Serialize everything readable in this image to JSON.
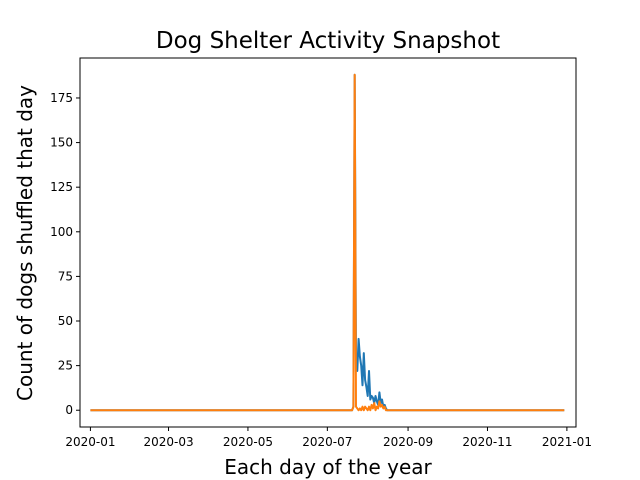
{
  "chart_data": {
    "type": "line",
    "title": "Dog Shelter Activity Snapshot",
    "xlabel": "Each day of the year",
    "ylabel": "Count of dogs shuffled that day",
    "xlim": [
      "2019-12-24",
      "2021-01-08"
    ],
    "ylim": [
      -9.4,
      197.4
    ],
    "x_ticks": [
      "2020-01",
      "2020-03",
      "2020-05",
      "2020-07",
      "2020-09",
      "2020-11",
      "2021-01"
    ],
    "y_ticks": [
      0,
      25,
      50,
      75,
      100,
      125,
      150,
      175
    ],
    "grid": false,
    "series": [
      {
        "color": "#1f77b4",
        "points": [
          [
            "2020-01-01",
            0
          ],
          [
            "2020-07-20",
            0
          ],
          [
            "2020-07-21",
            2
          ],
          [
            "2020-07-22",
            188
          ],
          [
            "2020-07-23",
            30
          ],
          [
            "2020-07-24",
            22
          ],
          [
            "2020-07-25",
            40
          ],
          [
            "2020-07-26",
            30
          ],
          [
            "2020-07-27",
            25
          ],
          [
            "2020-07-28",
            14
          ],
          [
            "2020-07-29",
            32
          ],
          [
            "2020-07-30",
            17
          ],
          [
            "2020-07-31",
            13
          ],
          [
            "2020-08-01",
            8
          ],
          [
            "2020-08-02",
            22
          ],
          [
            "2020-08-03",
            6
          ],
          [
            "2020-08-04",
            8
          ],
          [
            "2020-08-05",
            7
          ],
          [
            "2020-08-06",
            4
          ],
          [
            "2020-08-07",
            8
          ],
          [
            "2020-08-08",
            5
          ],
          [
            "2020-08-09",
            3
          ],
          [
            "2020-08-10",
            10
          ],
          [
            "2020-08-11",
            4
          ],
          [
            "2020-08-12",
            6
          ],
          [
            "2020-08-13",
            2
          ],
          [
            "2020-08-14",
            3
          ],
          [
            "2020-08-15",
            1
          ],
          [
            "2020-08-16",
            0
          ],
          [
            "2020-12-30",
            0
          ]
        ]
      },
      {
        "color": "#ff7f0e",
        "points": [
          [
            "2020-01-01",
            0
          ],
          [
            "2020-07-20",
            0
          ],
          [
            "2020-07-21",
            2
          ],
          [
            "2020-07-22",
            188
          ],
          [
            "2020-07-23",
            2
          ],
          [
            "2020-07-24",
            1
          ],
          [
            "2020-07-25",
            0
          ],
          [
            "2020-07-26",
            1
          ],
          [
            "2020-07-27",
            0
          ],
          [
            "2020-07-28",
            2
          ],
          [
            "2020-07-29",
            0
          ],
          [
            "2020-07-30",
            2
          ],
          [
            "2020-07-31",
            1
          ],
          [
            "2020-08-01",
            0
          ],
          [
            "2020-08-02",
            2
          ],
          [
            "2020-08-03",
            0
          ],
          [
            "2020-08-04",
            3
          ],
          [
            "2020-08-05",
            1
          ],
          [
            "2020-08-06",
            4
          ],
          [
            "2020-08-07",
            0
          ],
          [
            "2020-08-08",
            2
          ],
          [
            "2020-08-09",
            1
          ],
          [
            "2020-08-10",
            5
          ],
          [
            "2020-08-11",
            2
          ],
          [
            "2020-08-12",
            3
          ],
          [
            "2020-08-13",
            1
          ],
          [
            "2020-08-14",
            2
          ],
          [
            "2020-08-15",
            0
          ],
          [
            "2020-08-16",
            0
          ],
          [
            "2020-12-30",
            0
          ]
        ]
      }
    ]
  }
}
